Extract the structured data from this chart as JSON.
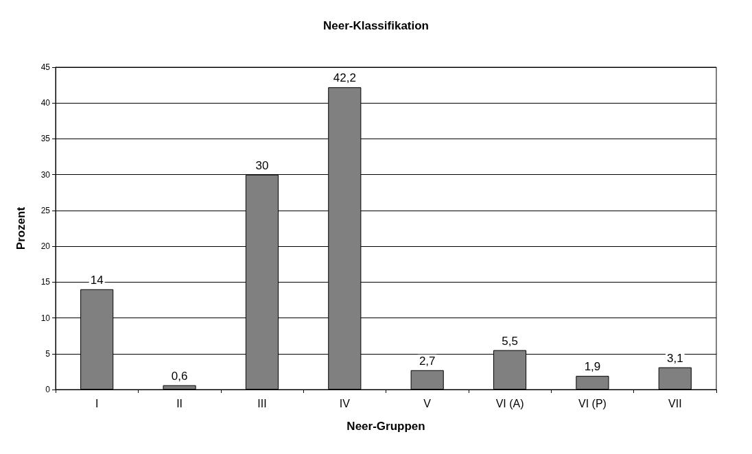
{
  "chart_data": {
    "type": "bar",
    "title": "Neer-Klassifikation",
    "xlabel": "Neer-Gruppen",
    "ylabel": "Prozent",
    "categories": [
      "I",
      "II",
      "III",
      "IV",
      "V",
      "VI (A)",
      "VI (P)",
      "VII"
    ],
    "values": [
      14,
      0.6,
      30,
      42.2,
      2.7,
      5.5,
      1.9,
      3.1
    ],
    "value_labels": [
      "14",
      "0,6",
      "30",
      "42,2",
      "2,7",
      "5,5",
      "1,9",
      "3,1"
    ],
    "color": "#808080",
    "ylim": [
      0,
      45
    ],
    "yticks": [
      0,
      5,
      10,
      15,
      20,
      25,
      30,
      35,
      40,
      45
    ],
    "grid": "y"
  }
}
